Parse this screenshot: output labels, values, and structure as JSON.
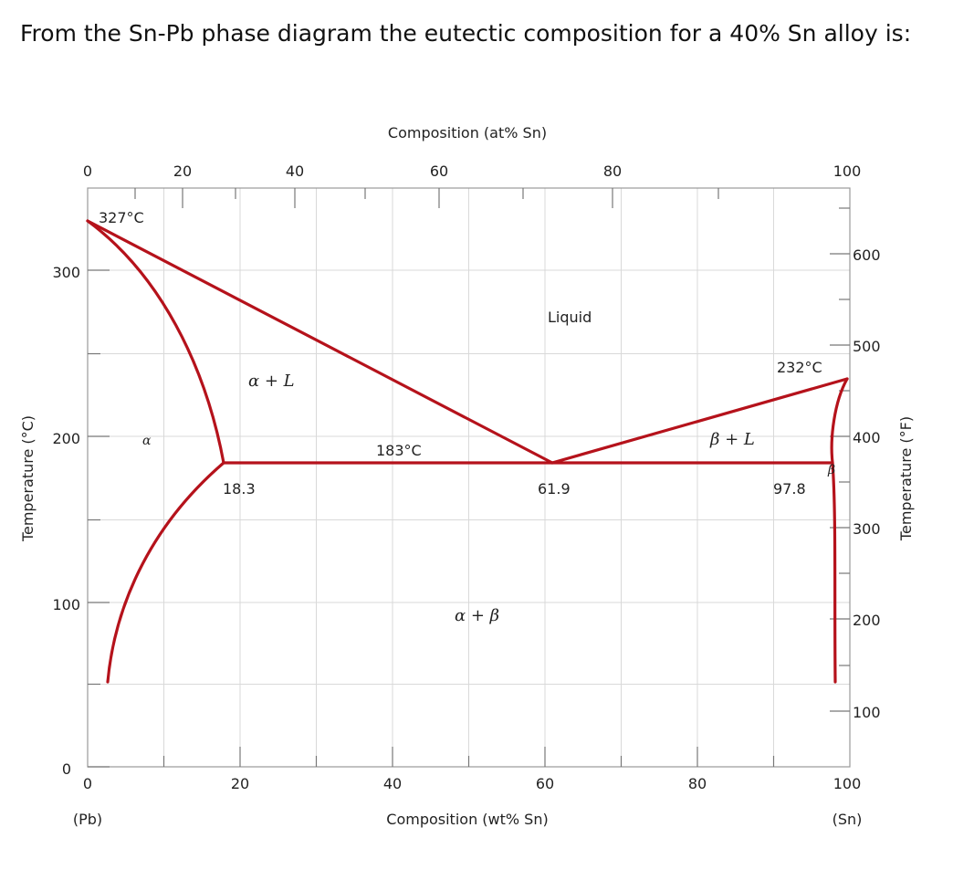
{
  "question": "From the Sn-Pb phase diagram the eutectic composition for a 40% Sn alloy is:",
  "axes": {
    "top_title": "Composition (at% Sn)",
    "bottom_title": "Composition (wt% Sn)",
    "left_title": "Temperature (°C)",
    "right_title": "Temperature (°F)",
    "top_ticks": [
      "0",
      "20",
      "40",
      "60",
      "80",
      "100"
    ],
    "bottom_ticks": [
      "0",
      "20",
      "40",
      "60",
      "80",
      "100"
    ],
    "left_ticks": [
      "0",
      "100",
      "200",
      "300"
    ],
    "right_ticks": [
      "100",
      "200",
      "300",
      "400",
      "500",
      "600"
    ],
    "pb_label": "(Pb)",
    "sn_label": "(Sn)"
  },
  "annotations": {
    "pb_melting": "327°C",
    "sn_melting": "232°C",
    "eutectic_temp": "183°C",
    "alpha_limit": "18.3",
    "eutectic_comp": "61.9",
    "beta_limit": "97.8"
  },
  "regions": {
    "liquid": "Liquid",
    "alpha_liquid": "α + L",
    "beta_liquid": "β + L",
    "alpha": "α",
    "beta": "β",
    "alpha_beta": "α + β"
  },
  "colors": {
    "phase_lines": "#b5121b",
    "grid": "#d9d9d9"
  }
}
